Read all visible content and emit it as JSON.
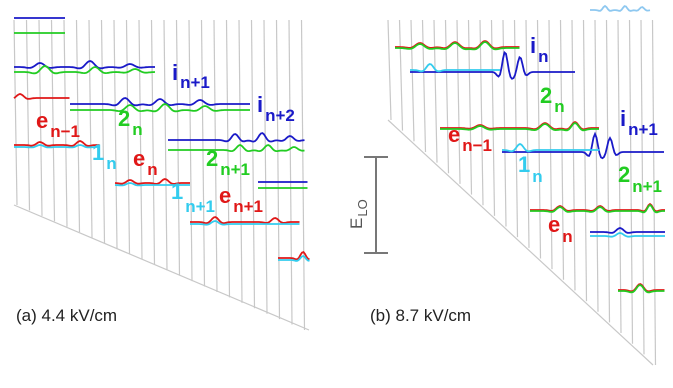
{
  "colors": {
    "i_state": "#1a1ac8",
    "two_state": "#22cc22",
    "e_state": "#e01818",
    "one_state": "#33ccee",
    "grid": "#c8c8c8",
    "text": "#222222"
  },
  "panels": [
    {
      "caption": "(a) 4.4 kV/cm",
      "labels": [
        {
          "id": "i-n1",
          "main": "i",
          "sub": "n+1",
          "color": "i_state"
        },
        {
          "id": "i-n2",
          "main": "i",
          "sub": "n+2",
          "color": "i_state"
        },
        {
          "id": "e-nm1",
          "main": "e",
          "sub": "n−1",
          "color": "e_state"
        },
        {
          "id": "two-n",
          "main": "2",
          "sub": "n",
          "color": "two_state"
        },
        {
          "id": "one-n",
          "main": "1",
          "sub": "n",
          "color": "one_state"
        },
        {
          "id": "e-n",
          "main": "e",
          "sub": "n",
          "color": "e_state"
        },
        {
          "id": "two-n1",
          "main": "2",
          "sub": "n+1",
          "color": "two_state"
        },
        {
          "id": "one-n1",
          "main": "1",
          "sub": "n+1",
          "color": "one_state"
        },
        {
          "id": "e-n1",
          "main": "e",
          "sub": "n+1",
          "color": "e_state"
        }
      ]
    },
    {
      "caption": "(b) 8.7 kV/cm",
      "labels": [
        {
          "id": "i-n",
          "main": "i",
          "sub": "n",
          "color": "i_state"
        },
        {
          "id": "two-n",
          "main": "2",
          "sub": "n",
          "color": "two_state"
        },
        {
          "id": "e-nm1",
          "main": "e",
          "sub": "n−1",
          "color": "e_state"
        },
        {
          "id": "i-n1",
          "main": "i",
          "sub": "n+1",
          "color": "i_state"
        },
        {
          "id": "one-n",
          "main": "1",
          "sub": "n",
          "color": "one_state"
        },
        {
          "id": "two-n1",
          "main": "2",
          "sub": "n+1",
          "color": "two_state"
        },
        {
          "id": "e-n",
          "main": "e",
          "sub": "n",
          "color": "e_state"
        }
      ]
    }
  ],
  "scale_bar": {
    "main": "E",
    "sub": "LO"
  }
}
